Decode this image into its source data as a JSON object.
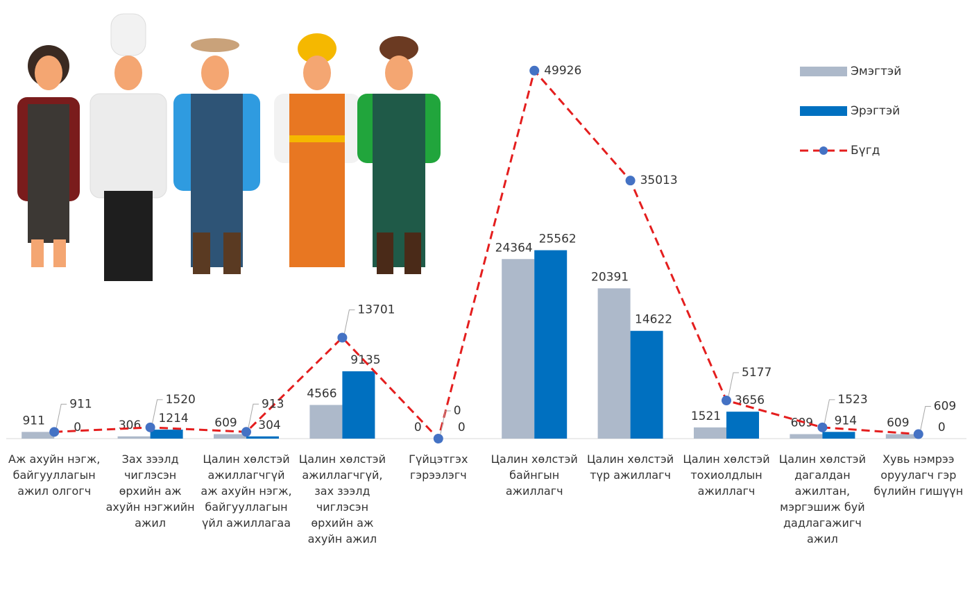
{
  "chart_data": {
    "type": "bar_line",
    "categories": [
      "Аж ахуйн нэгж, байгууллагын ажил олгогч",
      "Зах зээлд чиглэсэн өрхийн аж ахуйн нэгжийн ажил",
      "Цалин хөлстэй ажиллагчгүй аж ахуйн нэгж, байгууллагын үйл ажиллагаа",
      "Цалин хөлстэй ажиллагчгүй, зах зээлд чиглэсэн өрхийн аж ахуйн ажил",
      "Гүйцэтгэх гэрээлэгч",
      "Цалин хөлстэй байнгын ажиллагч",
      "Цалин хөлстэй түр ажиллагч",
      "Цалин хөлстэй тохиолдлын ажиллагч",
      "Цалин хөлстэй дагалдан ажилтан, мэргэшиж буй дадлагажигч ажил",
      "Хувь нэмрээ оруулагч гэр бүлийн гишүүн"
    ],
    "series": [
      {
        "name": "Эмэгтэй",
        "color": "#adb9ca",
        "kind": "bar",
        "values": [
          911,
          306,
          609,
          4566,
          0,
          24364,
          20391,
          1521,
          609,
          609
        ]
      },
      {
        "name": "Эрэгтэй",
        "color": "#0070c0",
        "kind": "bar",
        "values": [
          0,
          1214,
          304,
          9135,
          0,
          25562,
          14622,
          3656,
          914,
          0
        ]
      },
      {
        "name": "Бүгд",
        "color": "#e41e1e",
        "marker_color": "#4472c4",
        "kind": "line",
        "values": [
          911,
          1520,
          913,
          13701,
          0,
          49926,
          35013,
          5177,
          1523,
          609
        ]
      }
    ],
    "ylim": [
      0,
      50000
    ],
    "legend": "top-right"
  }
}
